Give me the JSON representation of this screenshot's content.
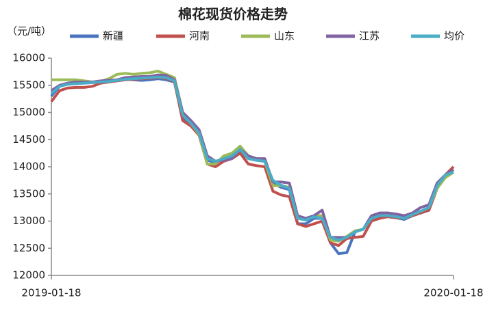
{
  "chart_data": {
    "type": "line",
    "title": "棉花现货价格走势",
    "y_label": "（元/吨）",
    "categories": [
      "2019-01-18",
      null,
      null,
      null,
      null,
      null,
      null,
      null,
      null,
      null,
      null,
      null,
      null,
      null,
      null,
      null,
      null,
      null,
      null,
      null,
      null,
      null,
      null,
      null,
      null,
      null,
      null,
      null,
      null,
      null,
      null,
      null,
      null,
      null,
      null,
      null,
      null,
      null,
      null,
      null,
      null,
      null,
      null,
      null,
      null,
      null,
      null,
      null,
      null,
      "2020-01-18"
    ],
    "ylim": [
      12000,
      16000
    ],
    "yticks": [
      12000,
      12500,
      13000,
      13500,
      14000,
      14500,
      15000,
      15500,
      16000
    ],
    "series": [
      {
        "name": "新疆",
        "color": "#4a74c0",
        "values": [
          15300,
          15480,
          15520,
          15530,
          15540,
          15550,
          15560,
          15570,
          15590,
          15610,
          15600,
          15590,
          15600,
          15620,
          15600,
          15560,
          14900,
          14780,
          14600,
          14120,
          14080,
          14150,
          14180,
          14300,
          14150,
          14120,
          14100,
          13700,
          13620,
          13580,
          12950,
          12950,
          13050,
          13050,
          12600,
          12400,
          12420,
          12800,
          12850,
          13050,
          13100,
          13080,
          13060,
          13030,
          13100,
          13150,
          13200,
          13600,
          13850,
          13900
        ]
      },
      {
        "name": "河南",
        "color": "#c0504d",
        "values": [
          15200,
          15400,
          15450,
          15460,
          15460,
          15480,
          15540,
          15560,
          15580,
          15600,
          15610,
          15620,
          15630,
          15640,
          15630,
          15560,
          14850,
          14750,
          14580,
          14050,
          14000,
          14100,
          14150,
          14250,
          14050,
          14020,
          14000,
          13550,
          13480,
          13450,
          12950,
          12900,
          12950,
          13000,
          12600,
          12550,
          12680,
          12700,
          12720,
          13000,
          13050,
          13080,
          13060,
          13050,
          13100,
          13150,
          13200,
          13600,
          13850,
          14000
        ]
      },
      {
        "name": "山东",
        "color": "#9bbb59",
        "values": [
          15600,
          15600,
          15600,
          15600,
          15580,
          15560,
          15570,
          15620,
          15700,
          15720,
          15700,
          15720,
          15730,
          15760,
          15700,
          15640,
          15000,
          14800,
          14600,
          14050,
          14050,
          14200,
          14250,
          14380,
          14200,
          14150,
          14100,
          13650,
          13650,
          13620,
          13050,
          13050,
          13100,
          13100,
          12650,
          12630,
          12720,
          12820,
          12850,
          13050,
          13150,
          13150,
          13100,
          13050,
          13150,
          13180,
          13250,
          13600,
          13800,
          13900
        ]
      },
      {
        "name": "江苏",
        "color": "#8064a2",
        "values": [
          15400,
          15500,
          15540,
          15560,
          15560,
          15560,
          15580,
          15590,
          15600,
          15640,
          15650,
          15660,
          15660,
          15690,
          15680,
          15600,
          15000,
          14850,
          14680,
          14200,
          14100,
          14120,
          14150,
          14320,
          14200,
          14150,
          14150,
          13720,
          13720,
          13700,
          13100,
          13050,
          13100,
          13200,
          12700,
          12700,
          12700,
          12800,
          12850,
          13100,
          13150,
          13150,
          13130,
          13100,
          13150,
          13250,
          13300,
          13700,
          13850,
          13950
        ]
      },
      {
        "name": "均价",
        "color": "#4bacc6",
        "values": [
          15350,
          15480,
          15520,
          15530,
          15540,
          15550,
          15560,
          15570,
          15590,
          15610,
          15620,
          15630,
          15640,
          15650,
          15640,
          15580,
          14950,
          14800,
          14620,
          14150,
          14100,
          14150,
          14200,
          14320,
          14150,
          14120,
          14100,
          13750,
          13660,
          13600,
          13050,
          13020,
          13080,
          13050,
          12700,
          12650,
          12700,
          12800,
          12850,
          13050,
          13100,
          13100,
          13080,
          13050,
          13120,
          13180,
          13250,
          13650,
          13850,
          13900
        ]
      }
    ]
  }
}
